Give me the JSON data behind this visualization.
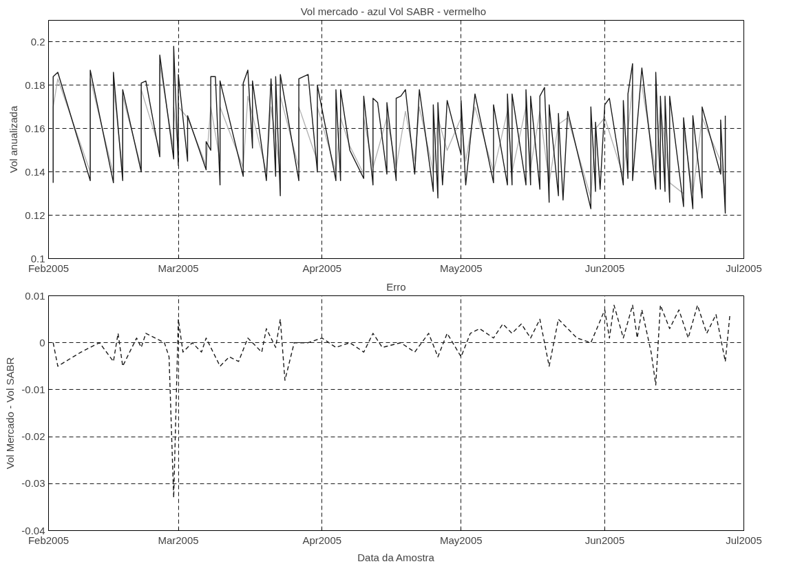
{
  "chart_data": [
    {
      "type": "line",
      "title": "Vol mercado - azul   Vol SABR - vermelho",
      "ylabel": "Vol anualizada",
      "xlim": [
        "2005-02-01",
        "2005-07-01"
      ],
      "xticks": [
        {
          "value": "2005-02-01",
          "label": "Feb2005"
        },
        {
          "value": "2005-03-01",
          "label": "Mar2005"
        },
        {
          "value": "2005-04-01",
          "label": "Apr2005"
        },
        {
          "value": "2005-05-01",
          "label": "May2005"
        },
        {
          "value": "2005-06-01",
          "label": "Jun2005"
        },
        {
          "value": "2005-07-01",
          "label": "Jul2005"
        }
      ],
      "ylim": [
        0.1,
        0.21
      ],
      "yticks": [
        0.1,
        0.12,
        0.14,
        0.16,
        0.18,
        0.2
      ],
      "grid": true,
      "line_style": "solid",
      "series": [
        {
          "color": "#b4b4b4",
          "x": [
            "2005-02-02",
            "2005-02-02",
            "2005-02-03",
            "2005-02-10",
            "2005-02-10",
            "2005-02-15",
            "2005-02-15",
            "2005-02-17",
            "2005-02-17",
            "2005-02-21",
            "2005-02-21",
            "2005-02-25",
            "2005-02-25",
            "2005-02-28",
            "2005-02-28",
            "2005-03-01",
            "2005-03-01",
            "2005-03-03",
            "2005-03-07",
            "2005-03-08",
            "2005-03-10",
            "2005-03-10",
            "2005-03-15",
            "2005-03-16",
            "2005-03-20",
            "2005-03-21",
            "2005-03-23",
            "2005-03-23",
            "2005-03-27",
            "2005-03-27",
            "2005-03-31",
            "2005-03-31",
            "2005-04-04",
            "2005-04-05",
            "2005-04-07",
            "2005-04-10",
            "2005-04-10",
            "2005-04-12",
            "2005-04-15",
            "2005-04-17",
            "2005-04-19",
            "2005-04-21",
            "2005-04-22",
            "2005-04-25",
            "2005-04-26",
            "2005-04-28",
            "2005-05-01",
            "2005-05-02",
            "2005-05-04",
            "2005-05-08",
            "2005-05-11",
            "2005-05-12",
            "2005-05-15",
            "2005-05-16",
            "2005-05-18",
            "2005-05-20",
            "2005-05-22",
            "2005-05-24",
            "2005-05-29",
            "2005-05-30",
            "2005-06-01",
            "2005-06-05",
            "2005-06-07",
            "2005-06-09",
            "2005-06-12",
            "2005-06-13",
            "2005-06-15",
            "2005-06-18",
            "2005-06-18",
            "2005-06-20",
            "2005-06-22",
            "2005-06-26",
            "2005-06-27",
            "2005-06-27"
          ],
          "values": [
            0.14,
            0.17,
            0.183,
            0.14,
            0.183,
            0.139,
            0.18,
            0.14,
            0.175,
            0.142,
            0.178,
            0.15,
            0.19,
            0.15,
            0.17,
            0.15,
            0.17,
            0.165,
            0.143,
            0.17,
            0.145,
            0.17,
            0.142,
            0.175,
            0.14,
            0.17,
            0.14,
            0.175,
            0.142,
            0.17,
            0.145,
            0.17,
            0.14,
            0.165,
            0.152,
            0.139,
            0.165,
            0.142,
            0.165,
            0.142,
            0.168,
            0.145,
            0.17,
            0.14,
            0.165,
            0.15,
            0.165,
            0.145,
            0.17,
            0.14,
            0.168,
            0.14,
            0.17,
            0.142,
            0.168,
            0.135,
            0.162,
            0.165,
            0.128,
            0.16,
            0.165,
            0.138,
            0.18,
            0.18,
            0.14,
            0.17,
            0.135,
            0.13,
            0.16,
            0.13,
            0.165,
            0.145,
            0.13,
            0.16
          ]
        },
        {
          "color": "#1a1a1a",
          "x": [
            "2005-02-02",
            "2005-02-02",
            "2005-02-03",
            "2005-02-10",
            "2005-02-10",
            "2005-02-15",
            "2005-02-15",
            "2005-02-17",
            "2005-02-17",
            "2005-02-21",
            "2005-02-21",
            "2005-02-22",
            "2005-02-25",
            "2005-02-25",
            "2005-02-28",
            "2005-02-28",
            "2005-03-01",
            "2005-03-01",
            "2005-03-03",
            "2005-03-03",
            "2005-03-07",
            "2005-03-07",
            "2005-03-08",
            "2005-03-08",
            "2005-03-09",
            "2005-03-10",
            "2005-03-10",
            "2005-03-15",
            "2005-03-15",
            "2005-03-16",
            "2005-03-17",
            "2005-03-17",
            "2005-03-20",
            "2005-03-21",
            "2005-03-22",
            "2005-03-22",
            "2005-03-23",
            "2005-03-23",
            "2005-03-27",
            "2005-03-27",
            "2005-03-29",
            "2005-03-31",
            "2005-03-31",
            "2005-04-04",
            "2005-04-04",
            "2005-04-05",
            "2005-04-05",
            "2005-04-07",
            "2005-04-10",
            "2005-04-10",
            "2005-04-12",
            "2005-04-12",
            "2005-04-13",
            "2005-04-15",
            "2005-04-15",
            "2005-04-17",
            "2005-04-17",
            "2005-04-18",
            "2005-04-19",
            "2005-04-21",
            "2005-04-22",
            "2005-04-25",
            "2005-04-25",
            "2005-04-26",
            "2005-04-26",
            "2005-04-27",
            "2005-04-28",
            "2005-05-01",
            "2005-05-01",
            "2005-05-02",
            "2005-05-04",
            "2005-05-08",
            "2005-05-08",
            "2005-05-11",
            "2005-05-11",
            "2005-05-12",
            "2005-05-12",
            "2005-05-15",
            "2005-05-15",
            "2005-05-16",
            "2005-05-16",
            "2005-05-18",
            "2005-05-18",
            "2005-05-19",
            "2005-05-20",
            "2005-05-20",
            "2005-05-22",
            "2005-05-22",
            "2005-05-23",
            "2005-05-24",
            "2005-05-29",
            "2005-05-29",
            "2005-05-30",
            "2005-05-30",
            "2005-05-31",
            "2005-06-01",
            "2005-06-02",
            "2005-06-05",
            "2005-06-05",
            "2005-06-06",
            "2005-06-06",
            "2005-06-07",
            "2005-06-07",
            "2005-06-09",
            "2005-06-12",
            "2005-06-12",
            "2005-06-13",
            "2005-06-13",
            "2005-06-14",
            "2005-06-14",
            "2005-06-15",
            "2005-06-15",
            "2005-06-18",
            "2005-06-18",
            "2005-06-20",
            "2005-06-20",
            "2005-06-22",
            "2005-06-22",
            "2005-06-26",
            "2005-06-26",
            "2005-06-27",
            "2005-06-27"
          ],
          "values": [
            0.135,
            0.184,
            0.186,
            0.136,
            0.187,
            0.135,
            0.186,
            0.136,
            0.178,
            0.14,
            0.181,
            0.182,
            0.147,
            0.194,
            0.146,
            0.198,
            0.143,
            0.185,
            0.145,
            0.166,
            0.141,
            0.154,
            0.15,
            0.184,
            0.184,
            0.134,
            0.182,
            0.138,
            0.181,
            0.187,
            0.151,
            0.182,
            0.136,
            0.183,
            0.138,
            0.184,
            0.129,
            0.185,
            0.136,
            0.183,
            0.185,
            0.14,
            0.18,
            0.136,
            0.178,
            0.136,
            0.178,
            0.15,
            0.137,
            0.175,
            0.134,
            0.174,
            0.172,
            0.139,
            0.172,
            0.136,
            0.174,
            0.175,
            0.178,
            0.139,
            0.178,
            0.131,
            0.171,
            0.128,
            0.172,
            0.134,
            0.173,
            0.148,
            0.173,
            0.134,
            0.176,
            0.135,
            0.171,
            0.134,
            0.176,
            0.134,
            0.176,
            0.134,
            0.178,
            0.134,
            0.175,
            0.132,
            0.175,
            0.179,
            0.126,
            0.171,
            0.129,
            0.167,
            0.127,
            0.168,
            0.123,
            0.17,
            0.131,
            0.163,
            0.132,
            0.171,
            0.174,
            0.134,
            0.173,
            0.137,
            0.176,
            0.19,
            0.136,
            0.188,
            0.132,
            0.186,
            0.132,
            0.175,
            0.131,
            0.175,
            0.126,
            0.175,
            0.124,
            0.165,
            0.123,
            0.166,
            0.128,
            0.17,
            0.139,
            0.164,
            0.121,
            0.166
          ]
        }
      ]
    },
    {
      "type": "line",
      "title": "Erro",
      "xlabel": "Data da Amostra",
      "ylabel": "Vol Mercado - Vol SABR",
      "xlim": [
        "2005-02-01",
        "2005-07-01"
      ],
      "xticks": [
        {
          "value": "2005-02-01",
          "label": "Feb2005"
        },
        {
          "value": "2005-03-01",
          "label": "Mar2005"
        },
        {
          "value": "2005-04-01",
          "label": "Apr2005"
        },
        {
          "value": "2005-05-01",
          "label": "May2005"
        },
        {
          "value": "2005-06-01",
          "label": "Jun2005"
        },
        {
          "value": "2005-07-01",
          "label": "Jul2005"
        }
      ],
      "ylim": [
        -0.04,
        0.01
      ],
      "yticks": [
        -0.04,
        -0.03,
        -0.02,
        -0.01,
        0,
        0.01
      ],
      "grid": true,
      "line_style": "dashed",
      "series": [
        {
          "color": "#1a1a1a",
          "x": [
            "2005-02-02",
            "2005-02-03",
            "2005-02-08",
            "2005-02-12",
            "2005-02-15",
            "2005-02-16",
            "2005-02-17",
            "2005-02-20",
            "2005-02-21",
            "2005-02-22",
            "2005-02-24",
            "2005-02-26",
            "2005-02-27",
            "2005-02-28",
            "2005-03-01",
            "2005-03-02",
            "2005-03-04",
            "2005-03-06",
            "2005-03-07",
            "2005-03-10",
            "2005-03-12",
            "2005-03-14",
            "2005-03-16",
            "2005-03-19",
            "2005-03-20",
            "2005-03-22",
            "2005-03-23",
            "2005-03-24",
            "2005-03-26",
            "2005-03-29",
            "2005-04-01",
            "2005-04-04",
            "2005-04-07",
            "2005-04-10",
            "2005-04-12",
            "2005-04-14",
            "2005-04-18",
            "2005-04-21",
            "2005-04-24",
            "2005-04-26",
            "2005-04-28",
            "2005-05-01",
            "2005-05-03",
            "2005-05-05",
            "2005-05-08",
            "2005-05-10",
            "2005-05-12",
            "2005-05-14",
            "2005-05-16",
            "2005-05-18",
            "2005-05-20",
            "2005-05-22",
            "2005-05-24",
            "2005-05-26",
            "2005-05-29",
            "2005-06-01",
            "2005-06-02",
            "2005-06-03",
            "2005-06-05",
            "2005-06-07",
            "2005-06-08",
            "2005-06-09",
            "2005-06-11",
            "2005-06-12",
            "2005-06-13",
            "2005-06-15",
            "2005-06-17",
            "2005-06-19",
            "2005-06-21",
            "2005-06-23",
            "2005-06-25",
            "2005-06-27",
            "2005-06-28"
          ],
          "values": [
            0,
            -0.005,
            -0.002,
            0,
            -0.004,
            0.002,
            -0.005,
            0.001,
            -0.001,
            0.002,
            0.001,
            0,
            -0.003,
            -0.033,
            0.005,
            -0.002,
            0,
            -0.002,
            0.001,
            -0.005,
            -0.003,
            -0.004,
            0.001,
            -0.002,
            0.003,
            -0.001,
            0.005,
            -0.008,
            0,
            0,
            0.001,
            -0.001,
            0,
            -0.002,
            0.002,
            -0.001,
            0,
            -0.002,
            0.002,
            -0.003,
            0.002,
            -0.003,
            0.002,
            0.003,
            0.001,
            0.004,
            0.002,
            0.004,
            0.001,
            0.005,
            -0.005,
            0.005,
            0.003,
            0.001,
            0,
            0.007,
            0.001,
            0.008,
            0.001,
            0.008,
            0.001,
            0.007,
            -0.002,
            -0.009,
            0.008,
            0.003,
            0.007,
            0.001,
            0.008,
            0.002,
            0.006,
            -0.004,
            0.006
          ]
        }
      ]
    }
  ]
}
